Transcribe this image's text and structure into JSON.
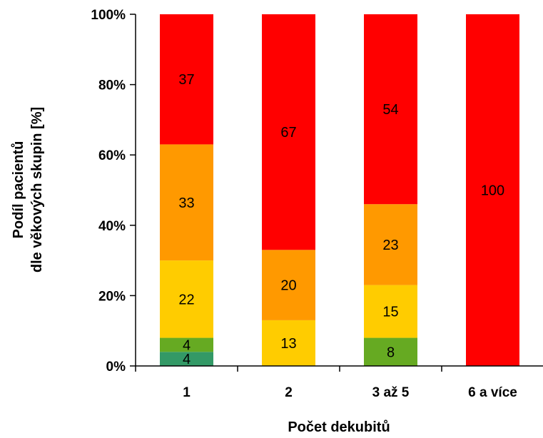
{
  "chart_data": {
    "type": "bar",
    "stacked": true,
    "percent_stacked": true,
    "categories": [
      "1",
      "2",
      "3 až 5",
      "6 a více"
    ],
    "series": [
      {
        "color": "#339966",
        "values": [
          4,
          0,
          0,
          0
        ]
      },
      {
        "color": "#66AA22",
        "values": [
          4,
          0,
          8,
          0
        ]
      },
      {
        "color": "#FFCC00",
        "values": [
          22,
          13,
          15,
          0
        ]
      },
      {
        "color": "#FF9900",
        "values": [
          33,
          20,
          23,
          0
        ]
      },
      {
        "color": "#FF0000",
        "values": [
          37,
          67,
          54,
          100
        ]
      }
    ],
    "yticks": [
      "0%",
      "20%",
      "40%",
      "60%",
      "80%",
      "100%"
    ],
    "ylim": [
      0,
      100
    ],
    "xlabel": "Počet dekubitů",
    "ylabel_lines": [
      "Podíl pacientů",
      "dle věkových skupin [%]"
    ],
    "grid": false,
    "legend": "none"
  }
}
